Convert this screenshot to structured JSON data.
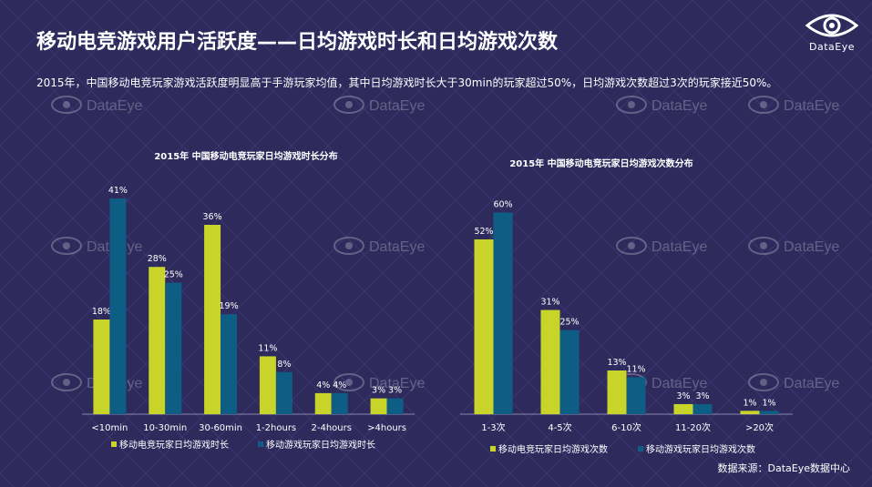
{
  "page": {
    "title": "移动电竞游戏用户活跃度——日均游戏时长和日均游戏次数",
    "subtitle": "2015年，中国移动电竞玩家游戏活跃度明显高于手游玩家均值，其中日均游戏时长大于30min的玩家超过50%，日均游戏次数超过3次的玩家接近50%。",
    "logo_text": "DataEye",
    "watermark_text": "DataEye",
    "source": "数据来源：DataEye数据中心",
    "colors": {
      "background": "#2e2a5c",
      "series1": "#c8d42a",
      "series2": "#0d5d85"
    }
  },
  "chart_data": [
    {
      "type": "bar",
      "title": "2015年 中国移动电竞玩家日均游戏时长分布",
      "categories": [
        "<10min",
        "10-30min",
        "30-60min",
        "1-2hours",
        "2-4hours",
        ">4hours"
      ],
      "series": [
        {
          "name": "移动电竞玩家日均游戏时长",
          "values": [
            18,
            28,
            36,
            11,
            4,
            3
          ],
          "labels": [
            "18%",
            "28%",
            "36%",
            "11%",
            "4%",
            "3%"
          ]
        },
        {
          "name": "移动游戏玩家日均游戏时长",
          "values": [
            41,
            25,
            19,
            8,
            4,
            3
          ],
          "labels": [
            "41%",
            "25%",
            "19%",
            "8%",
            "4%",
            "3%"
          ]
        }
      ],
      "ylim": [
        0,
        45
      ],
      "legend": "bottom"
    },
    {
      "type": "bar",
      "title": "2015年 中国移动电竞玩家日均游戏次数分布",
      "categories": [
        "1-3次",
        "4-5次",
        "6-10次",
        "11-20次",
        ">20次"
      ],
      "series": [
        {
          "name": "移动电竞玩家日均游戏次数",
          "values": [
            52,
            31,
            13,
            3,
            1
          ],
          "labels": [
            "52%",
            "31%",
            "13%",
            "3%",
            "1%"
          ]
        },
        {
          "name": "移动游戏玩家日均游戏次数",
          "values": [
            60,
            25,
            11,
            3,
            1
          ],
          "labels": [
            "60%",
            "25%",
            "11%",
            "3%",
            "1%"
          ]
        }
      ],
      "ylim": [
        0,
        65
      ],
      "legend": "bottom"
    }
  ]
}
